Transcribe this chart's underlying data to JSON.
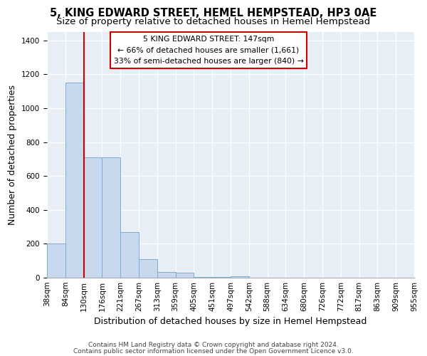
{
  "title": "5, KING EDWARD STREET, HEMEL HEMPSTEAD, HP3 0AE",
  "subtitle": "Size of property relative to detached houses in Hemel Hempstead",
  "xlabel": "Distribution of detached houses by size in Hemel Hempstead",
  "ylabel": "Number of detached properties",
  "bar_values": [
    200,
    1150,
    710,
    710,
    270,
    110,
    35,
    30,
    5,
    5,
    10,
    0,
    0,
    0,
    0,
    0,
    0,
    0,
    0,
    0
  ],
  "x_labels": [
    "38sqm",
    "84sqm",
    "130sqm",
    "176sqm",
    "221sqm",
    "267sqm",
    "313sqm",
    "359sqm",
    "405sqm",
    "451sqm",
    "497sqm",
    "542sqm",
    "588sqm",
    "634sqm",
    "680sqm",
    "726sqm",
    "772sqm",
    "817sqm",
    "863sqm",
    "909sqm",
    "955sqm"
  ],
  "bar_color": "#c8d8ed",
  "bar_edge_color": "#7aaed4",
  "vline_x": 2,
  "vline_color": "#cc0000",
  "annotation_title": "5 KING EDWARD STREET: 147sqm",
  "annotation_line1": "← 66% of detached houses are smaller (1,661)",
  "annotation_line2": "33% of semi-detached houses are larger (840) →",
  "annotation_box_color": "#ffffff",
  "annotation_box_edge": "#cc0000",
  "ylim": [
    0,
    1450
  ],
  "yticks": [
    0,
    200,
    400,
    600,
    800,
    1000,
    1200,
    1400
  ],
  "footnote1": "Contains HM Land Registry data © Crown copyright and database right 2024.",
  "footnote2": "Contains public sector information licensed under the Open Government Licence v3.0.",
  "bg_color": "#ffffff",
  "axes_bg_color": "#e8eef6",
  "grid_color": "#ffffff",
  "title_fontsize": 10.5,
  "subtitle_fontsize": 9.5,
  "label_fontsize": 9,
  "tick_fontsize": 7.5,
  "footnote_fontsize": 6.5
}
